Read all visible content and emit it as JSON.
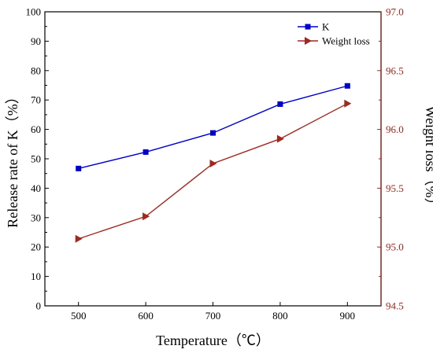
{
  "chart_data": {
    "type": "line",
    "xlabel": "Temperature（℃）",
    "ylabel_left": "Release rate of K（%）",
    "ylabel_right": "Weight loss（%）",
    "x_ticks": [
      "500",
      "600",
      "700",
      "800",
      "900"
    ],
    "y_left_ticks": [
      "0",
      "10",
      "20",
      "30",
      "40",
      "50",
      "60",
      "70",
      "80",
      "90",
      "100"
    ],
    "y_right_ticks": [
      "94.5",
      "95.0",
      "95.5",
      "96.0",
      "96.5",
      "97.0"
    ],
    "xlim": [
      450,
      950
    ],
    "ylim_left": [
      0,
      100
    ],
    "ylim_right": [
      94.5,
      97.0
    ],
    "legend_position": "top-right",
    "series": [
      {
        "name": "K",
        "axis": "left",
        "color": "#0000cc",
        "marker": "square",
        "x": [
          500,
          600,
          700,
          800,
          900
        ],
        "y": [
          46.7,
          52.3,
          58.8,
          68.6,
          74.8
        ]
      },
      {
        "name": "Weight loss",
        "axis": "right",
        "color": "#a0281e",
        "marker": "triangle-right",
        "x": [
          500,
          600,
          700,
          800,
          900
        ],
        "y": [
          95.07,
          95.26,
          95.71,
          95.92,
          96.22
        ]
      }
    ]
  }
}
